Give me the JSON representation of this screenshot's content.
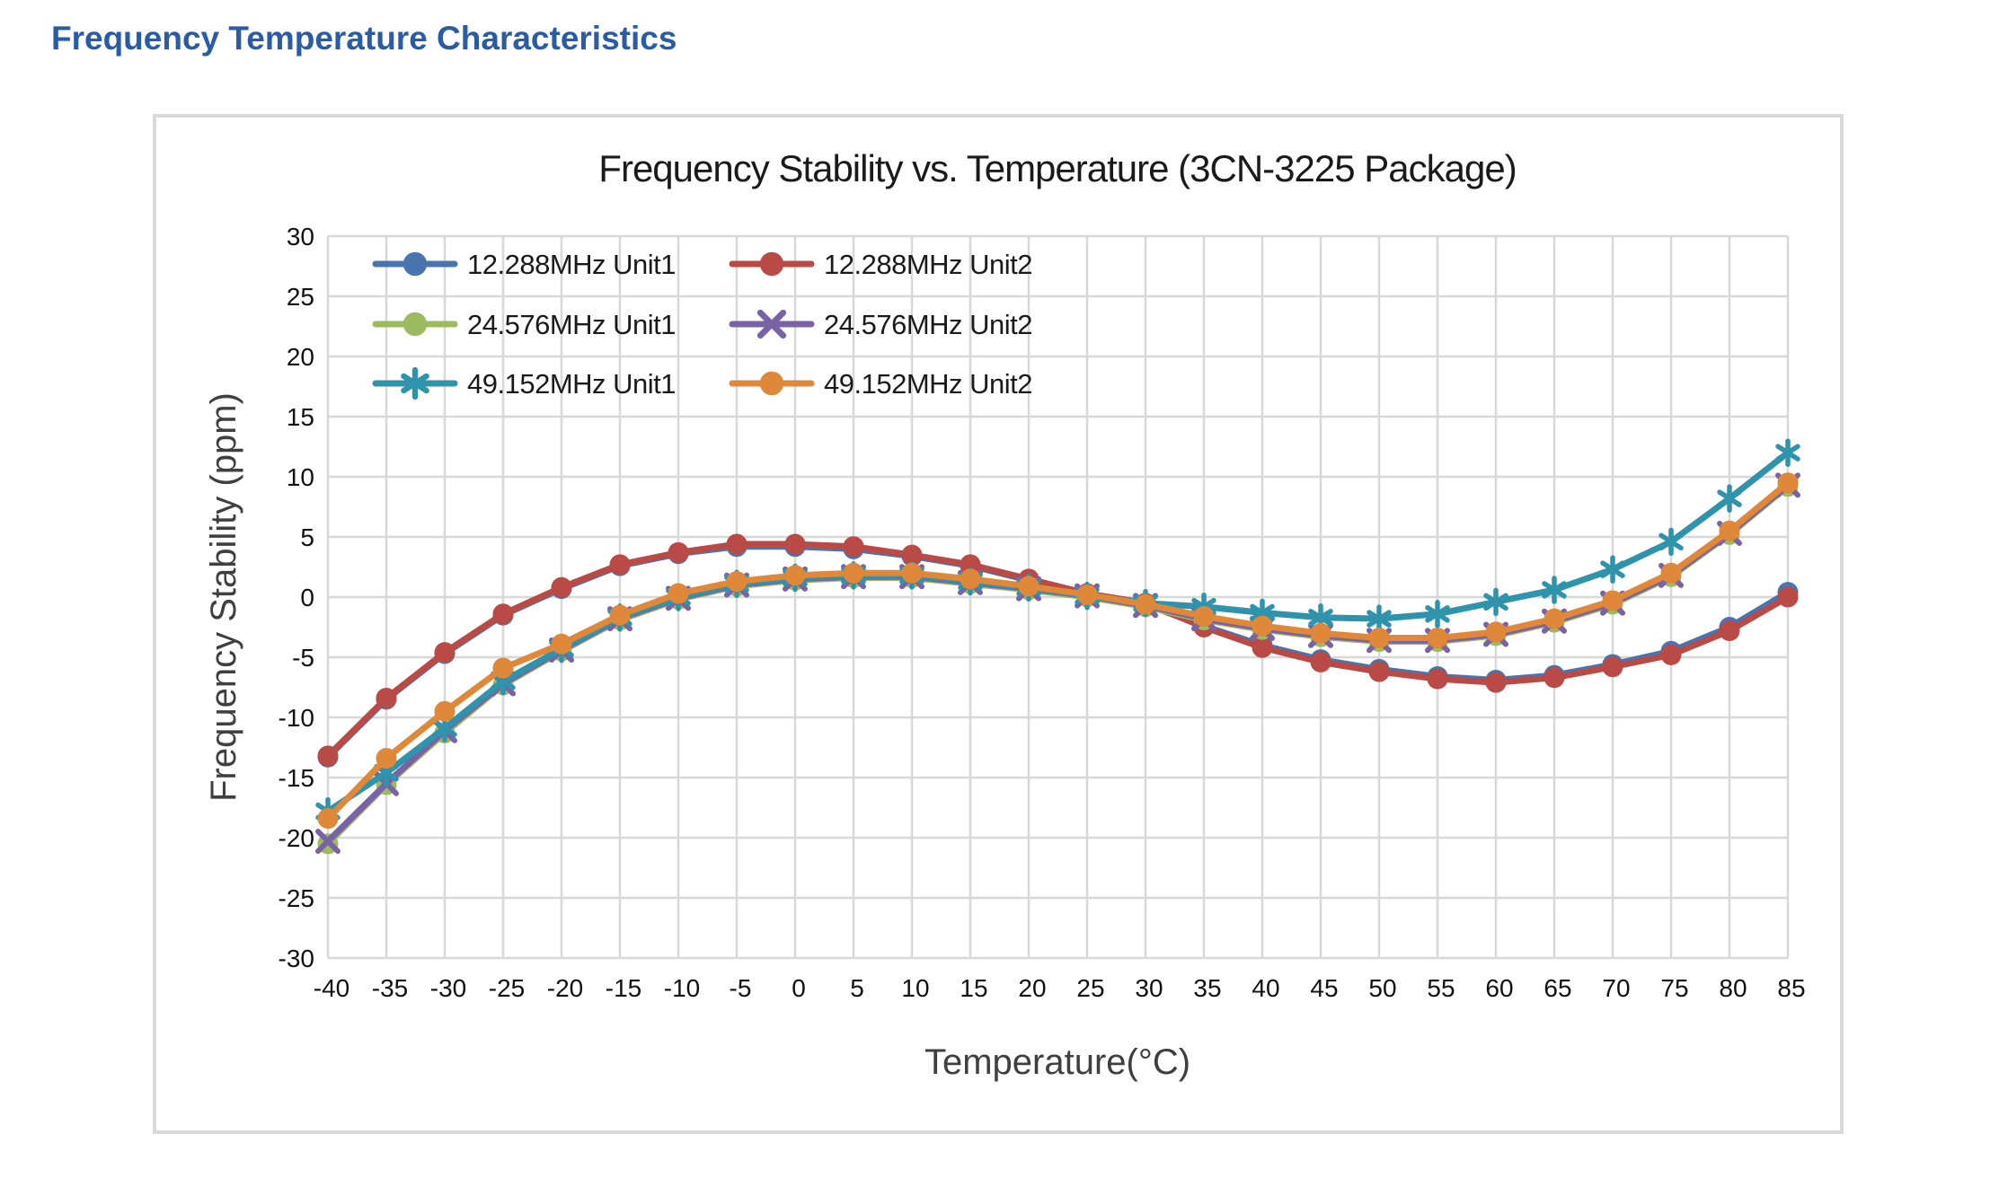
{
  "page": {
    "title": "Frequency Temperature Characteristics"
  },
  "chart": {
    "title": "Frequency Stability vs. Temperature (3CN-3225 Package)",
    "x_axis": {
      "title": "Temperature(°C)",
      "min": -40,
      "max": 85,
      "step": 5
    },
    "y_axis": {
      "title": "Frequency Stability (ppm)",
      "min": -30,
      "max": 30,
      "step": 5
    },
    "colors": {
      "grid": "#d8d8d8",
      "card_border": "#d9d9d9",
      "title_text": "#1a1a1a",
      "axis_title_text": "#3f3f3f",
      "tick_text": "#111111",
      "page_title_text": "#2a5ba6"
    }
  },
  "chart_data": {
    "type": "line",
    "title": "Frequency Stability vs. Temperature (3CN-3225 Package)",
    "xlabel": "Temperature(°C)",
    "ylabel": "Frequency Stability (ppm)",
    "xlim": [
      -40,
      85
    ],
    "ylim": [
      -30,
      30
    ],
    "tick_step": 5,
    "grid": true,
    "legend_position": "top-left-inside",
    "x": [
      -40,
      -35,
      -30,
      -25,
      -20,
      -15,
      -10,
      -5,
      0,
      5,
      10,
      15,
      20,
      25,
      30,
      35,
      40,
      45,
      50,
      55,
      60,
      65,
      70,
      75,
      80,
      85
    ],
    "series": [
      {
        "name": "12.288MHz Unit1",
        "color": "#4a74ae",
        "marker": "circle",
        "values": [
          -13.3,
          -8.5,
          -4.7,
          -1.5,
          0.7,
          2.6,
          3.6,
          4.2,
          4.2,
          4.0,
          3.4,
          2.6,
          1.4,
          0.2,
          -0.6,
          -2.4,
          -4.0,
          -5.2,
          -6.0,
          -6.6,
          -6.9,
          -6.5,
          -5.6,
          -4.5,
          -2.5,
          0.4
        ]
      },
      {
        "name": "12.288MHz Unit2",
        "color": "#b94a46",
        "marker": "circle",
        "values": [
          -13.2,
          -8.4,
          -4.6,
          -1.4,
          0.8,
          2.7,
          3.7,
          4.4,
          4.4,
          4.2,
          3.5,
          2.7,
          1.5,
          0.3,
          -0.5,
          -2.5,
          -4.2,
          -5.4,
          -6.2,
          -6.8,
          -7.1,
          -6.7,
          -5.8,
          -4.8,
          -2.8,
          0.0
        ]
      },
      {
        "name": "24.576MHz Unit1",
        "color": "#9cba5e",
        "marker": "circle",
        "values": [
          -20.5,
          -15.6,
          -11.3,
          -7.3,
          -4.5,
          -1.9,
          -0.2,
          0.9,
          1.4,
          1.6,
          1.6,
          1.1,
          0.6,
          0.0,
          -0.8,
          -1.9,
          -2.7,
          -3.3,
          -3.7,
          -3.7,
          -3.2,
          -2.1,
          -0.6,
          1.7,
          5.2,
          9.2
        ]
      },
      {
        "name": "24.576MHz Unit2",
        "color": "#7a63a5",
        "marker": "x",
        "values": [
          -20.3,
          -15.5,
          -11.1,
          -7.2,
          -4.4,
          -1.8,
          -0.1,
          1.0,
          1.5,
          1.7,
          1.7,
          1.2,
          0.7,
          0.1,
          -0.7,
          -1.8,
          -2.6,
          -3.2,
          -3.6,
          -3.6,
          -3.1,
          -2.0,
          -0.5,
          1.8,
          5.3,
          9.3
        ]
      },
      {
        "name": "49.152MHz Unit1",
        "color": "#2e93ab",
        "marker": "asterisk",
        "values": [
          -17.8,
          -14.6,
          -10.9,
          -7.0,
          -4.3,
          -1.7,
          0.0,
          1.1,
          1.6,
          1.8,
          1.8,
          1.3,
          0.8,
          0.1,
          -0.5,
          -0.8,
          -1.3,
          -1.7,
          -1.8,
          -1.4,
          -0.4,
          0.6,
          2.3,
          4.6,
          8.2,
          12.0
        ]
      },
      {
        "name": "49.152MHz Unit2",
        "color": "#e0883a",
        "marker": "circle",
        "values": [
          -18.4,
          -13.4,
          -9.5,
          -5.9,
          -3.9,
          -1.5,
          0.3,
          1.3,
          1.8,
          2.0,
          2.0,
          1.5,
          0.9,
          0.2,
          -0.6,
          -1.6,
          -2.4,
          -3.0,
          -3.4,
          -3.4,
          -2.9,
          -1.8,
          -0.3,
          2.0,
          5.5,
          9.5
        ]
      }
    ]
  }
}
